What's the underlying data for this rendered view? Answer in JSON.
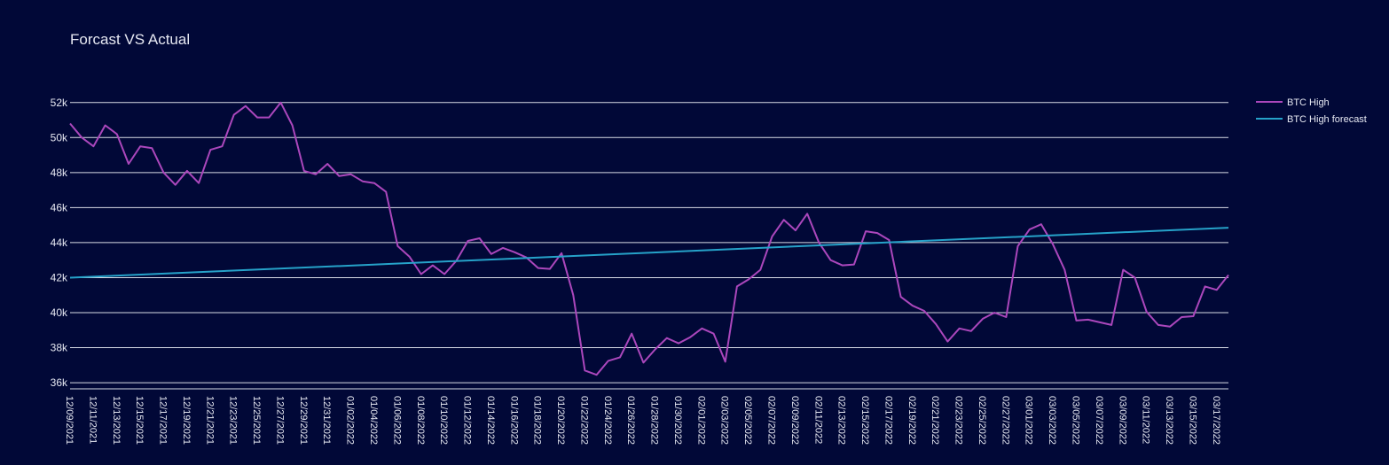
{
  "chart_data": {
    "type": "line",
    "title": "Forcast VS Actual",
    "xlabel": "",
    "ylabel": "",
    "ylim": [
      35600,
      53000
    ],
    "yticks": [
      36000,
      38000,
      40000,
      42000,
      44000,
      46000,
      48000,
      50000,
      52000
    ],
    "ytick_labels": [
      "36k",
      "38k",
      "40k",
      "42k",
      "44k",
      "46k",
      "48k",
      "50k",
      "52k"
    ],
    "x_start": "2021-12-09",
    "xtick_step_days": 2,
    "xtick_labels": [
      "12/09/2021",
      "12/11/2021",
      "12/13/2021",
      "12/15/2021",
      "12/17/2021",
      "12/19/2021",
      "12/21/2021",
      "12/23/2021",
      "12/25/2021",
      "12/27/2021",
      "12/29/2021",
      "12/31/2021",
      "01/02/2022",
      "01/04/2022",
      "01/06/2022",
      "01/08/2022",
      "01/10/2022",
      "01/12/2022",
      "01/14/2022",
      "01/16/2022",
      "01/18/2022",
      "01/20/2022",
      "01/22/2022",
      "01/24/2022",
      "01/26/2022",
      "01/28/2022",
      "01/30/2022",
      "02/01/2022",
      "02/03/2022",
      "02/05/2022",
      "02/07/2022",
      "02/09/2022",
      "02/11/2022",
      "02/13/2022",
      "02/15/2022",
      "02/17/2022",
      "02/19/2022",
      "02/21/2022",
      "02/23/2022",
      "02/25/2022",
      "02/27/2022",
      "03/01/2022",
      "03/03/2022",
      "03/05/2022",
      "03/07/2022",
      "03/09/2022",
      "03/11/2022",
      "03/13/2022",
      "03/15/2022",
      "03/17/2022"
    ],
    "grid": true,
    "legend_position": "top-right",
    "series": [
      {
        "name": "BTC High",
        "color": "#ab47bc",
        "values": [
          50800,
          50000,
          49500,
          50700,
          50200,
          48500,
          49500,
          49400,
          48000,
          47300,
          48100,
          47400,
          49300,
          49500,
          51300,
          51800,
          51150,
          51150,
          52000,
          50700,
          48100,
          47900,
          48500,
          47800,
          47900,
          47500,
          47400,
          46900,
          43800,
          43200,
          42200,
          42700,
          42200,
          42950,
          44100,
          44250,
          43350,
          43700,
          43450,
          43150,
          42550,
          42500,
          43400,
          41000,
          36700,
          36450,
          37250,
          37450,
          38800,
          37150,
          37900,
          38550,
          38250,
          38600,
          39100,
          38800,
          37200,
          41500,
          41900,
          42450,
          44350,
          45300,
          44700,
          45650,
          44000,
          43000,
          42700,
          42750,
          44650,
          44550,
          44150,
          40900,
          40400,
          40100,
          39350,
          38350,
          39100,
          38950,
          39650,
          40000,
          39750,
          43800,
          44750,
          45050,
          43900,
          42450,
          39550,
          39600,
          39450,
          39300,
          42450,
          42000,
          40050,
          39300,
          39200,
          39750,
          39800,
          41500,
          41300,
          42150
        ]
      },
      {
        "name": "BTC High forecast",
        "color": "#26a2c9",
        "start": 42000,
        "end": 44850
      }
    ]
  }
}
